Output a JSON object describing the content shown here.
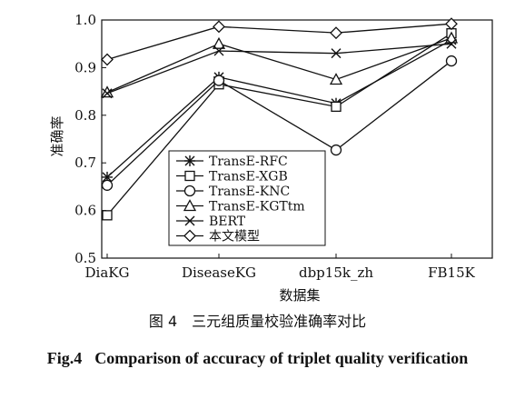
{
  "chart_data": {
    "type": "line",
    "title": "",
    "xlabel": "数据集",
    "ylabel": "准确率",
    "categories": [
      "DiaKG",
      "DiseaseKG",
      "dbp15k_zh",
      "FB15K"
    ],
    "ylim": [
      0.5,
      1.0
    ],
    "yticks": [
      "0.5",
      "0.6",
      "0.7",
      "0.8",
      "0.9",
      "1.0"
    ],
    "grid": false,
    "legend_position": "lower-center",
    "series": [
      {
        "name": "TransE-RFC",
        "marker": "asterisk",
        "values": [
          0.67,
          0.88,
          0.825,
          0.958
        ]
      },
      {
        "name": "TransE-XGB",
        "marker": "square",
        "values": [
          0.59,
          0.865,
          0.818,
          0.972
        ]
      },
      {
        "name": "TransE-KNC",
        "marker": "circle",
        "values": [
          0.653,
          0.873,
          0.727,
          0.914
        ]
      },
      {
        "name": "TransE-KGTtm",
        "marker": "triangle",
        "values": [
          0.848,
          0.95,
          0.875,
          0.962
        ]
      },
      {
        "name": "BERT",
        "marker": "x",
        "values": [
          0.846,
          0.935,
          0.93,
          0.95
        ]
      },
      {
        "name": "本文模型",
        "marker": "diamond",
        "values": [
          0.917,
          0.986,
          0.973,
          0.992
        ]
      }
    ]
  },
  "caption": {
    "cn": "图 4　三元组质量校验准确率对比",
    "fig_no": "Fig.4",
    "en_text": "Comparison of accuracy of triplet quality verification"
  }
}
